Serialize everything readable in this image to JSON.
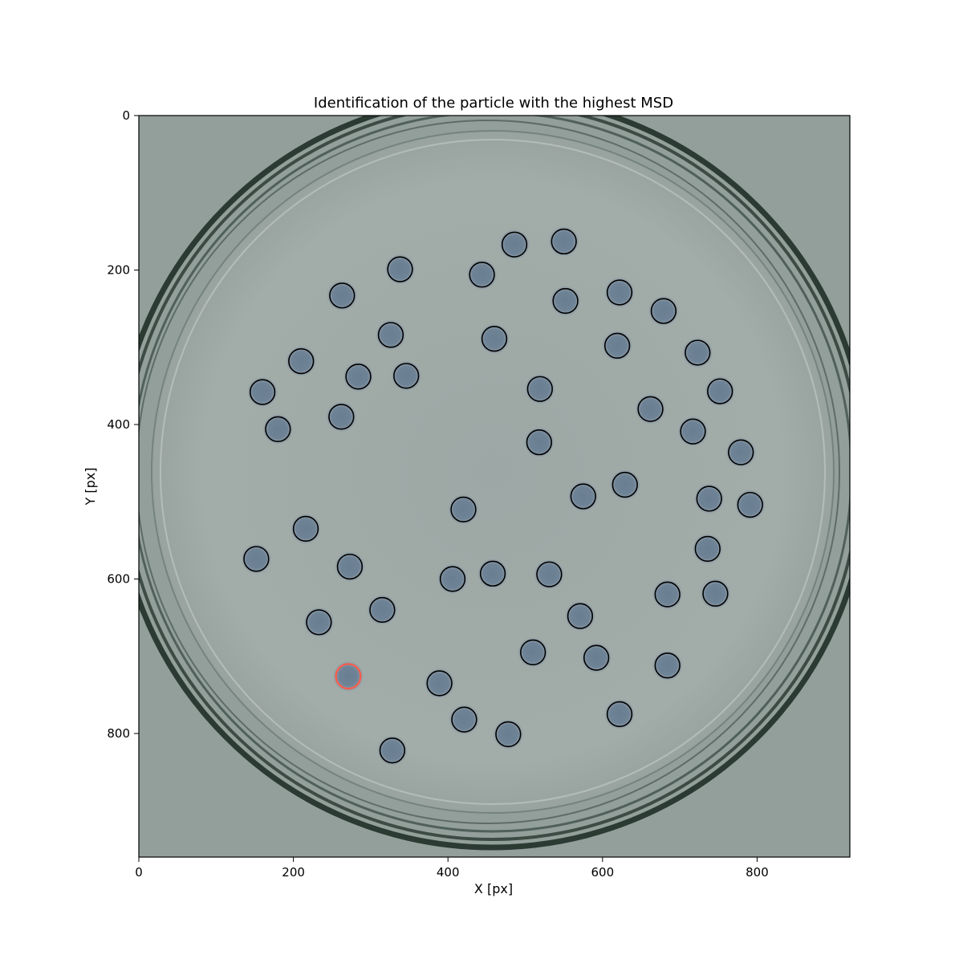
{
  "chart_data": {
    "type": "scatter",
    "title": "Identification of the particle with the highest MSD",
    "xlabel": "X [px]",
    "ylabel": "Y [px]",
    "xlim": [
      0,
      920
    ],
    "ylim": [
      960,
      0
    ],
    "y_inverted": true,
    "grid": false,
    "background": "image of a Petri dish (grey-green) with floating blue particles",
    "xticks": [
      0,
      200,
      400,
      600,
      800
    ],
    "yticks": [
      0,
      200,
      400,
      600,
      800
    ],
    "series": [
      {
        "marker": "open circle",
        "color": "#000000",
        "points": [
          [
            486,
            167
          ],
          [
            550,
            163
          ],
          [
            338,
            199
          ],
          [
            444,
            206
          ],
          [
            263,
            233
          ],
          [
            622,
            229
          ],
          [
            552,
            240
          ],
          [
            679,
            253
          ],
          [
            326,
            284
          ],
          [
            460,
            289
          ],
          [
            619,
            298
          ],
          [
            723,
            307
          ],
          [
            210,
            318
          ],
          [
            284,
            338
          ],
          [
            346,
            337
          ],
          [
            160,
            358
          ],
          [
            519,
            354
          ],
          [
            752,
            357
          ],
          [
            262,
            390
          ],
          [
            662,
            380
          ],
          [
            180,
            406
          ],
          [
            717,
            409
          ],
          [
            518,
            423
          ],
          [
            779,
            436
          ],
          [
            629,
            478
          ],
          [
            575,
            493
          ],
          [
            738,
            496
          ],
          [
            791,
            504
          ],
          [
            420,
            510
          ],
          [
            216,
            535
          ],
          [
            736,
            561
          ],
          [
            152,
            574
          ],
          [
            273,
            584
          ],
          [
            406,
            600
          ],
          [
            458,
            593
          ],
          [
            531,
            594
          ],
          [
            315,
            640
          ],
          [
            571,
            648
          ],
          [
            684,
            620
          ],
          [
            746,
            619
          ],
          [
            233,
            656
          ],
          [
            510,
            695
          ],
          [
            592,
            702
          ],
          [
            684,
            712
          ],
          [
            389,
            735
          ],
          [
            421,
            782
          ],
          [
            622,
            775
          ],
          [
            478,
            801
          ],
          [
            328,
            822
          ]
        ]
      },
      {
        "marker": "open circle (highlighted)",
        "color": "#ff5a4a",
        "points": [
          [
            271,
            726
          ]
        ]
      }
    ]
  }
}
